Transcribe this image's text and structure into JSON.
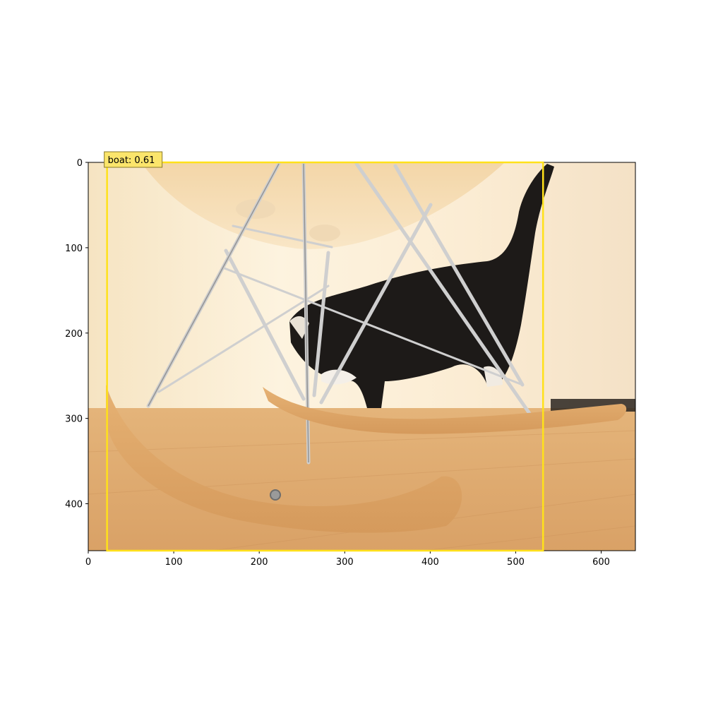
{
  "axes": {
    "x_range": [
      0,
      640
    ],
    "y_range": [
      0,
      455
    ],
    "y_inverted": true,
    "x_ticks": [
      {
        "value": 0,
        "label": "0"
      },
      {
        "value": 100,
        "label": "100"
      },
      {
        "value": 200,
        "label": "200"
      },
      {
        "value": 300,
        "label": "300"
      },
      {
        "value": 400,
        "label": "400"
      },
      {
        "value": 500,
        "label": "500"
      },
      {
        "value": 600,
        "label": "600"
      }
    ],
    "y_ticks": [
      {
        "value": 0,
        "label": "0"
      },
      {
        "value": 100,
        "label": "100"
      },
      {
        "value": 200,
        "label": "200"
      },
      {
        "value": 300,
        "label": "300"
      },
      {
        "value": 400,
        "label": "400"
      }
    ]
  },
  "detections": [
    {
      "label": "boat: 0.61",
      "x_min": 22,
      "x_max": 532,
      "y_min": 0,
      "y_max": 455
    }
  ],
  "colors": {
    "box": "#ffe11a",
    "label_bg": "#fbe56b",
    "label_border": "#8a7a2a"
  }
}
